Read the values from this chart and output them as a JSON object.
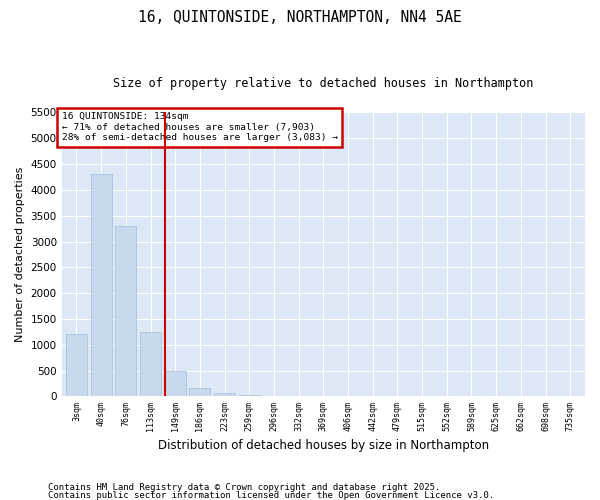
{
  "title": "16, QUINTONSIDE, NORTHAMPTON, NN4 5AE",
  "subtitle": "Size of property relative to detached houses in Northampton",
  "xlabel": "Distribution of detached houses by size in Northampton",
  "ylabel": "Number of detached properties",
  "bar_color": "#c8d9ee",
  "bar_edge_color": "#a0bedd",
  "background_color": "#dce8f5",
  "grid_color": "#ffffff",
  "vline_color": "#cc0000",
  "annotation_text": "16 QUINTONSIDE: 134sqm\n← 71% of detached houses are smaller (7,903)\n28% of semi-detached houses are larger (3,083) →",
  "annotation_box_color": "#cc0000",
  "annotation_bg": "#ffffff",
  "categories": [
    "3sqm",
    "40sqm",
    "76sqm",
    "113sqm",
    "149sqm",
    "186sqm",
    "223sqm",
    "259sqm",
    "296sqm",
    "332sqm",
    "369sqm",
    "406sqm",
    "442sqm",
    "479sqm",
    "515sqm",
    "552sqm",
    "589sqm",
    "625sqm",
    "662sqm",
    "698sqm",
    "735sqm"
  ],
  "values": [
    1200,
    4300,
    3300,
    1250,
    490,
    170,
    60,
    30,
    5,
    0,
    0,
    0,
    0,
    0,
    0,
    0,
    0,
    0,
    0,
    0,
    0
  ],
  "ylim": [
    0,
    5500
  ],
  "yticks": [
    0,
    500,
    1000,
    1500,
    2000,
    2500,
    3000,
    3500,
    4000,
    4500,
    5000,
    5500
  ],
  "footer1": "Contains HM Land Registry data © Crown copyright and database right 2025.",
  "footer2": "Contains public sector information licensed under the Open Government Licence v3.0.",
  "title_fontsize": 10.5,
  "subtitle_fontsize": 8.5,
  "footer_fontsize": 6.5
}
